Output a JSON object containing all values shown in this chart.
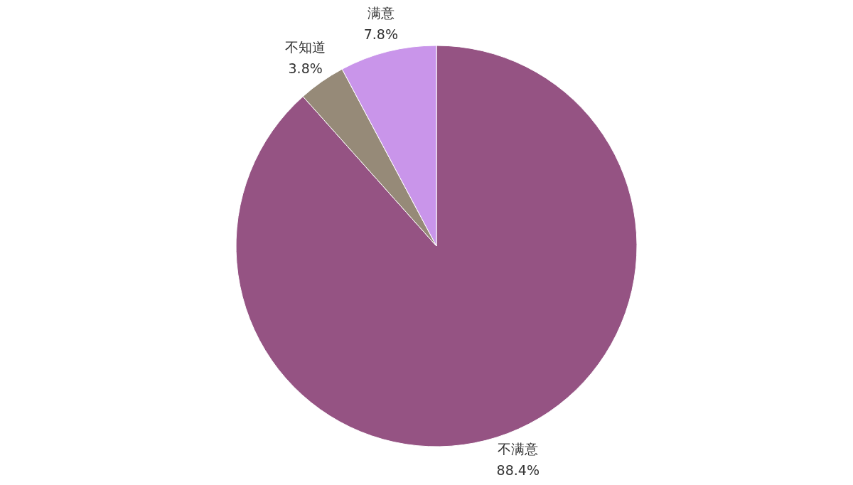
{
  "chart_data": {
    "type": "pie",
    "categories": [
      "不满意",
      "不知道",
      "满意"
    ],
    "values": [
      88.4,
      3.8,
      7.8
    ],
    "colors": [
      "#955383",
      "#968a78",
      "#c995ea"
    ],
    "value_labels": [
      "88.4%",
      "3.8%",
      "7.8%"
    ]
  }
}
